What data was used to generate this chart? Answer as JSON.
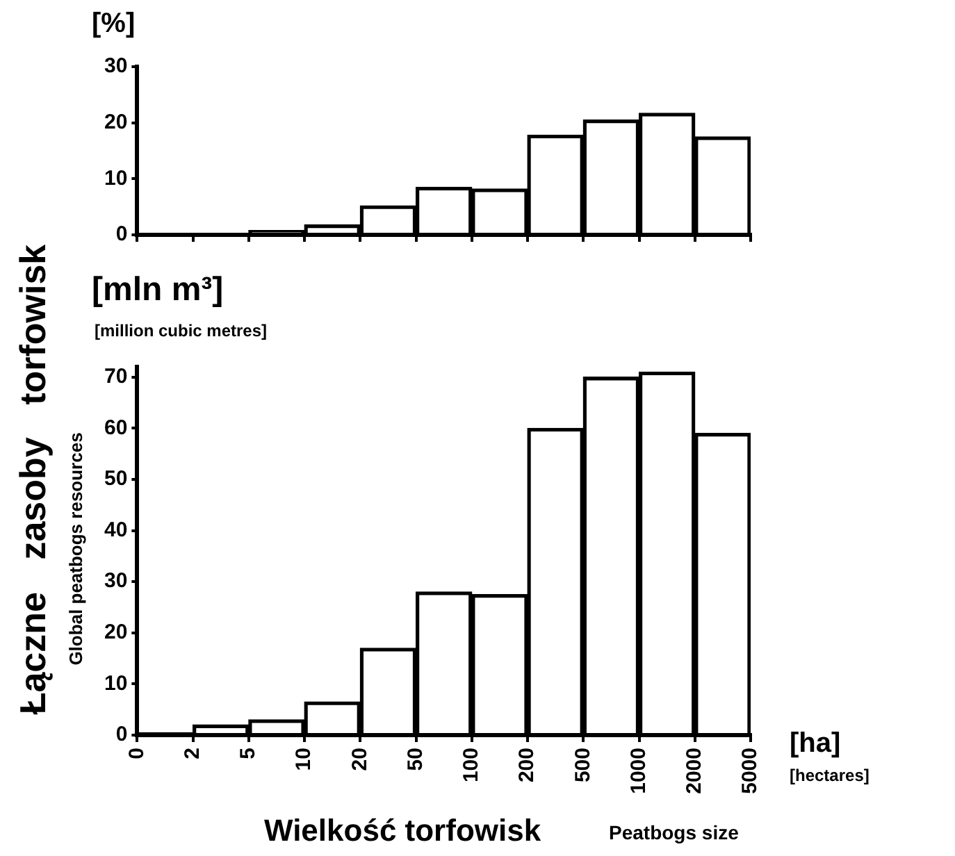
{
  "chart_data": [
    {
      "type": "bar",
      "ylabel": "[%]",
      "categories": [
        null,
        null,
        null,
        null,
        null,
        null,
        null,
        null,
        null,
        null,
        null
      ],
      "values": [
        0.1,
        0.3,
        0.8,
        1.8,
        5.2,
        8.5,
        8.2,
        17.8,
        20.5,
        21.7,
        17.5
      ],
      "color": "#000000",
      "ylim": [
        0,
        30
      ],
      "yticks": [
        0,
        10,
        20,
        30
      ]
    },
    {
      "type": "bar",
      "ylabel": "Łączne zasoby torfowisk",
      "xlabel": "Wielkość torfowisk",
      "categories": [
        null,
        null,
        null,
        null,
        null,
        null,
        null,
        null,
        null,
        null,
        null
      ],
      "values": [
        0.5,
        2,
        3,
        6.5,
        17,
        28,
        27.5,
        60,
        70,
        71,
        59
      ],
      "color": "#000000",
      "ylim": [
        0,
        72
      ],
      "yticks": [
        0,
        10,
        20,
        30,
        40,
        50,
        60,
        70
      ],
      "annotations": [
        "Global peatbogs resources",
        "[mln m³]",
        "[million cubic metres]",
        "[ha]",
        "[hectares]",
        "Peatbogs size",
        "0",
        "2",
        "5",
        "10",
        "20",
        "50",
        "100",
        "200",
        "500",
        "1000",
        "2000",
        "5000"
      ]
    }
  ]
}
